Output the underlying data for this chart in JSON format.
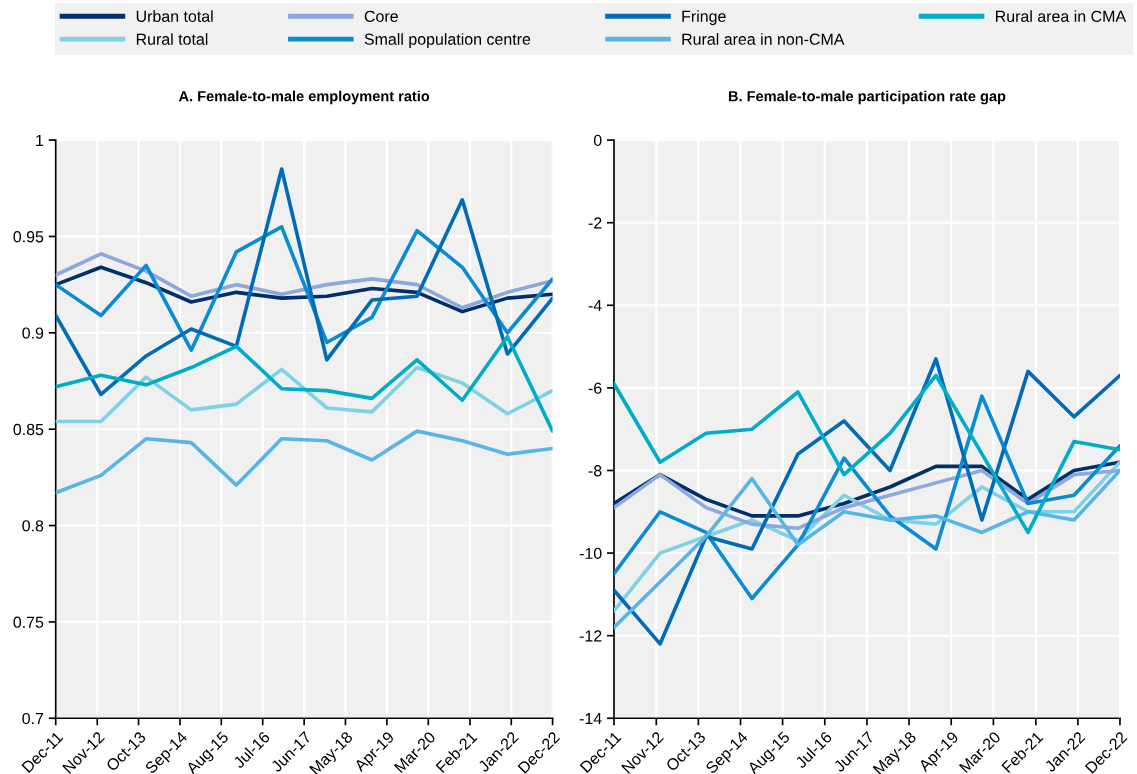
{
  "chart_data": [
    {
      "type": "line",
      "title": "A. Female-to-male employment ratio",
      "x": [
        "2011-12",
        "2012-12",
        "2013-12",
        "2014-12",
        "2015-12",
        "2016-12",
        "2017-12",
        "2018-12",
        "2019-12",
        "2020-12",
        "2021-12",
        "2022-12"
      ],
      "xlim": [
        "2011-12",
        "2022-12"
      ],
      "xticks": [
        {
          "value": "2011-12",
          "label": "Dec-11"
        },
        {
          "value": "2012-11",
          "label": "Nov-12"
        },
        {
          "value": "2013-10",
          "label": "Oct-13"
        },
        {
          "value": "2014-09",
          "label": "Sep-14"
        },
        {
          "value": "2015-08",
          "label": "Aug-15"
        },
        {
          "value": "2016-07",
          "label": "Jul-16"
        },
        {
          "value": "2017-06",
          "label": "Jun-17"
        },
        {
          "value": "2018-05",
          "label": "May-18"
        },
        {
          "value": "2019-04",
          "label": "Apr-19"
        },
        {
          "value": "2020-03",
          "label": "Mar-20"
        },
        {
          "value": "2021-02",
          "label": "Feb-21"
        },
        {
          "value": "2022-01",
          "label": "Jan-22"
        },
        {
          "value": "2022-12",
          "label": "Dec-22"
        }
      ],
      "ylim": [
        0.7,
        1
      ],
      "yticks": [
        0.7,
        0.75,
        0.8,
        0.85,
        0.9,
        0.95,
        1
      ],
      "grid": true,
      "legend": "top",
      "series": [
        {
          "name": "Urban total",
          "color": "#002f6c",
          "values": [
            0.925,
            0.934,
            0.926,
            0.916,
            0.921,
            0.918,
            0.919,
            0.923,
            0.921,
            0.911,
            0.918,
            0.92
          ]
        },
        {
          "name": "Rural total",
          "color": "#7fd1e6",
          "values": [
            0.854,
            0.854,
            0.877,
            0.86,
            0.863,
            0.881,
            0.861,
            0.859,
            0.882,
            0.874,
            0.858,
            0.87
          ]
        },
        {
          "name": "Core",
          "color": "#8ca8dc",
          "values": [
            0.93,
            0.941,
            0.932,
            0.919,
            0.925,
            0.92,
            0.925,
            0.928,
            0.925,
            0.913,
            0.921,
            0.927
          ]
        },
        {
          "name": "Small population centre",
          "color": "#0a8bd6",
          "values": [
            0.925,
            0.909,
            0.935,
            0.891,
            0.942,
            0.955,
            0.895,
            0.908,
            0.953,
            0.934,
            0.9,
            0.928
          ]
        },
        {
          "name": "Fringe",
          "color": "#006bb6",
          "values": [
            0.909,
            0.868,
            0.888,
            0.902,
            0.893,
            0.985,
            0.886,
            0.917,
            0.919,
            0.969,
            0.889,
            0.918
          ]
        },
        {
          "name": "Rural area in non-CMA",
          "color": "#57b5e8",
          "values": [
            0.817,
            0.826,
            0.845,
            0.843,
            0.821,
            0.845,
            0.844,
            0.834,
            0.849,
            0.844,
            0.837,
            0.84
          ]
        },
        {
          "name": "Rural area in CMA",
          "color": "#00acc8",
          "values": [
            0.872,
            0.878,
            0.873,
            0.882,
            0.893,
            0.871,
            0.87,
            0.866,
            0.886,
            0.865,
            0.898,
            0.849
          ]
        }
      ]
    },
    {
      "type": "line",
      "title": "B. Female-to-male participation rate gap",
      "x": [
        "2011-12",
        "2012-12",
        "2013-12",
        "2014-12",
        "2015-12",
        "2016-12",
        "2017-12",
        "2018-12",
        "2019-12",
        "2020-12",
        "2021-12",
        "2022-12"
      ],
      "xlim": [
        "2011-12",
        "2022-12"
      ],
      "xticks": [
        {
          "value": "2011-12",
          "label": "Dec-11"
        },
        {
          "value": "2012-11",
          "label": "Nov-12"
        },
        {
          "value": "2013-10",
          "label": "Oct-13"
        },
        {
          "value": "2014-09",
          "label": "Sep-14"
        },
        {
          "value": "2015-08",
          "label": "Aug-15"
        },
        {
          "value": "2016-07",
          "label": "Jul-16"
        },
        {
          "value": "2017-06",
          "label": "Jun-17"
        },
        {
          "value": "2018-05",
          "label": "May-18"
        },
        {
          "value": "2019-04",
          "label": "Apr-19"
        },
        {
          "value": "2020-03",
          "label": "Mar-20"
        },
        {
          "value": "2021-02",
          "label": "Feb-21"
        },
        {
          "value": "2022-01",
          "label": "Jan-22"
        },
        {
          "value": "2022-12",
          "label": "Dec-22"
        }
      ],
      "ylim": [
        -14,
        0
      ],
      "yticks": [
        -14,
        -12,
        -10,
        -8,
        -6,
        -4,
        -2,
        0
      ],
      "grid": true,
      "series": [
        {
          "color": "#002f6c",
          "values": [
            -8.8,
            -8.1,
            -8.7,
            -9.1,
            -9.1,
            -8.8,
            -8.4,
            -7.9,
            -7.9,
            -8.7,
            -8.0,
            -7.8
          ]
        },
        {
          "color": "#7fd1e6",
          "values": [
            -11.4,
            -10.0,
            -9.6,
            -9.2,
            -9.7,
            -8.6,
            -9.2,
            -9.3,
            -8.4,
            -9.0,
            -9.0,
            -7.8
          ]
        },
        {
          "color": "#8ca8dc",
          "values": [
            -8.9,
            -8.1,
            -8.9,
            -9.3,
            -9.4,
            -8.9,
            -8.6,
            -8.3,
            -8.0,
            -8.8,
            -8.1,
            -8.0
          ]
        },
        {
          "color": "#0a8bd6",
          "values": [
            -10.5,
            -9.0,
            -9.5,
            -11.1,
            -9.8,
            -7.7,
            -9.1,
            -9.9,
            -6.2,
            -8.8,
            -8.6,
            -7.4
          ]
        },
        {
          "color": "#006bb6",
          "values": [
            -10.9,
            -12.2,
            -9.6,
            -9.9,
            -7.6,
            -6.8,
            -8.0,
            -5.3,
            -9.2,
            -5.6,
            -6.7,
            -5.7
          ]
        },
        {
          "color": "#57b5e8",
          "values": [
            -11.8,
            -10.7,
            -9.6,
            -8.2,
            -9.8,
            -9.0,
            -9.2,
            -9.1,
            -9.5,
            -9.0,
            -9.2,
            -8.0
          ]
        },
        {
          "color": "#00acc8",
          "values": [
            -5.9,
            -7.8,
            -7.1,
            -7.0,
            -6.1,
            -8.1,
            -7.1,
            -5.7,
            -7.6,
            -9.5,
            -7.3,
            -7.5
          ]
        }
      ]
    }
  ]
}
